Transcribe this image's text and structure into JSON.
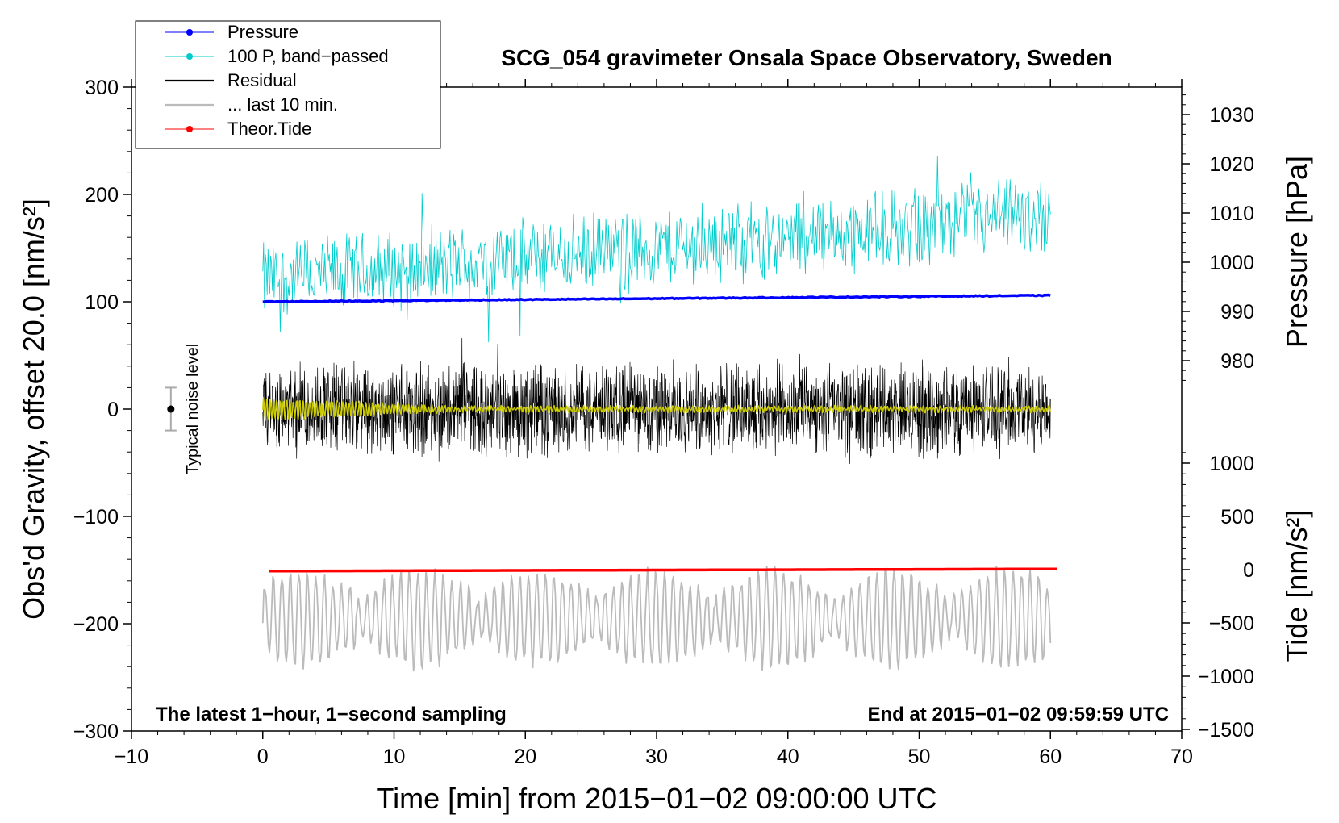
{
  "chart_data": {
    "type": "line",
    "title": "SCG_054 gravimeter Onsala Space Observatory, Sweden",
    "xlabel": "Time [min] from 2015−01−02 09:00:00 UTC",
    "ylabel_left": "Obs'd Gravity, offset 20.0 [nm/s²]",
    "ylabel_right_pressure": "Pressure [hPa]",
    "ylabel_right_tide": "Tide [nm/s²]",
    "xlim": [
      -10,
      70
    ],
    "ylim": [
      -300,
      300
    ],
    "x_ticks": [
      "−10",
      "0",
      "10",
      "20",
      "30",
      "40",
      "50",
      "60",
      "70"
    ],
    "y_ticks": [
      "−300",
      "−200",
      "−100",
      "0",
      "100",
      "200",
      "300"
    ],
    "pressure_ticks": [
      "980",
      "990",
      "1000",
      "1010",
      "1020",
      "1030"
    ],
    "tide_ticks": [
      "−1500",
      "−1000",
      "−500",
      "0",
      "500",
      "1000"
    ],
    "legend": [
      {
        "label": "Pressure",
        "color": "#0000ff",
        "marker": true
      },
      {
        "label": "100 P, band−passed",
        "color": "#00cccc",
        "marker": true
      },
      {
        "label": "Residual",
        "color": "#000000",
        "marker": false
      },
      {
        "label": "... last 10 min.",
        "color": "#bbbbbb",
        "marker": false
      },
      {
        "label": "Theor.Tide",
        "color": "#ff0000",
        "marker": true
      }
    ],
    "noise_label": "Typical noise level",
    "noise_level": 20,
    "note_left": "The latest 1−hour, 1−second sampling",
    "note_right": "End at 2015−01−02 09:59:59 UTC",
    "series": [
      {
        "name": "Pressure",
        "color": "#0000ff",
        "x_range": [
          0,
          60
        ],
        "plot_y_start": 100,
        "plot_y_end": 106
      },
      {
        "name": "100 P, band−passed",
        "color": "#00cccc",
        "x_range": [
          0,
          60
        ],
        "plot_y_start": 120,
        "plot_y_end": 180,
        "amplitude": 35
      },
      {
        "name": "Residual",
        "color": "#000000",
        "x_range": [
          0,
          60
        ],
        "plot_y_center": 0,
        "amplitude": 40
      },
      {
        "name": "Residual (smoothed)",
        "color": "#cccc00",
        "x_range": [
          0,
          60
        ],
        "plot_y_center": 0,
        "amplitude": 10
      },
      {
        "name": "... last 10 min.",
        "color": "#bbbbbb",
        "x_range": [
          0,
          60
        ],
        "plot_y_center": -195,
        "amplitude": 45
      },
      {
        "name": "Theor.Tide",
        "color": "#ff0000",
        "x_range": [
          0.5,
          60.5
        ],
        "plot_y_start": -151,
        "plot_y_end": -149
      }
    ]
  }
}
